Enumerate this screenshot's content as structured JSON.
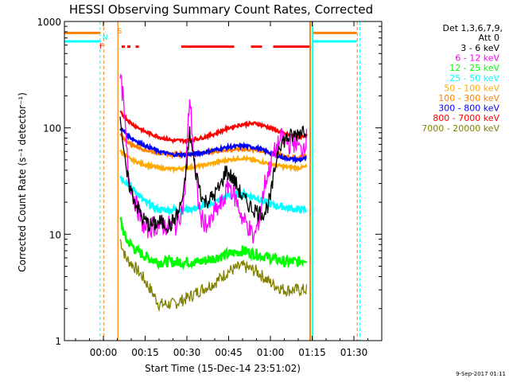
{
  "chart_data": {
    "type": "line",
    "title": "HESSI Observing Summary Count Rates, Corrected",
    "xlabel": "Start Time (15-Dec-14 23:51:02)",
    "ylabel": "Corrected Count Rate (s⁻¹ detector⁻¹)",
    "yscale": "log",
    "ylim": [
      1,
      1000
    ],
    "xlim_minutes": [
      -14,
      100
    ],
    "x_unit": "minutes after 00:00",
    "x_ticks": [
      "00:00",
      "00:15",
      "00:30",
      "00:45",
      "01:00",
      "01:15",
      "01:30"
    ],
    "y_ticks": [
      "1",
      "10",
      "100",
      "1000"
    ],
    "legend_header": [
      "Det 1,3,6,7,9,",
      "Att 0"
    ],
    "legend_position": "right",
    "grid": false,
    "series": [
      {
        "name": "3 - 6 keV",
        "color": "#000000",
        "x": [
          6,
          8,
          10,
          14,
          17,
          20,
          24,
          27,
          29,
          31,
          33,
          36,
          39,
          42,
          44,
          47,
          50,
          53,
          56,
          58,
          60,
          63,
          66,
          69,
          71,
          73
        ],
        "values": [
          140,
          40,
          25,
          14,
          12,
          13,
          12,
          16,
          25,
          90,
          40,
          20,
          22,
          28,
          40,
          32,
          22,
          18,
          16,
          16,
          22,
          70,
          80,
          85,
          95,
          100
        ]
      },
      {
        "name": "6 - 12 keV",
        "color": "#ff00ff",
        "x": [
          6,
          7,
          9,
          12,
          15,
          18,
          22,
          26,
          29,
          31,
          33,
          35,
          38,
          40,
          43,
          45,
          48,
          50,
          52,
          54,
          56,
          58,
          61,
          64,
          67,
          69,
          71,
          73
        ],
        "values": [
          300,
          200,
          35,
          18,
          11,
          12,
          12,
          12,
          20,
          200,
          35,
          14,
          12,
          16,
          20,
          30,
          20,
          14,
          12,
          9,
          14,
          30,
          55,
          80,
          70,
          75,
          60,
          80
        ]
      },
      {
        "name": "12 - 25 keV",
        "color": "#00ff00",
        "x": [
          6,
          8,
          12,
          16,
          20,
          25,
          30,
          35,
          40,
          45,
          50,
          55,
          60,
          65,
          70,
          73
        ],
        "values": [
          14,
          9,
          7,
          6,
          5.5,
          5.5,
          5.5,
          5.5,
          6,
          6.5,
          7,
          6.5,
          6,
          5.5,
          5.5,
          6
        ]
      },
      {
        "name": "25 - 50 keV",
        "color": "#00ffff",
        "x": [
          6,
          10,
          15,
          20,
          25,
          30,
          35,
          40,
          45,
          50,
          55,
          60,
          65,
          70,
          73
        ],
        "values": [
          35,
          28,
          20,
          17,
          17,
          17,
          18,
          20,
          23,
          24,
          22,
          19,
          18,
          17,
          17
        ]
      },
      {
        "name": "50 - 100 keV",
        "color": "#ffaa00",
        "x": [
          6,
          10,
          15,
          20,
          25,
          30,
          35,
          40,
          45,
          50,
          55,
          60,
          65,
          70,
          73
        ],
        "values": [
          60,
          50,
          45,
          42,
          41,
          42,
          44,
          47,
          50,
          52,
          49,
          46,
          43,
          42,
          43
        ]
      },
      {
        "name": "100 - 300 keV",
        "color": "#ff7f00",
        "x": [
          6,
          10,
          15,
          20,
          25,
          30,
          35,
          40,
          45,
          50,
          55,
          60,
          65,
          70,
          73
        ],
        "values": [
          85,
          70,
          62,
          58,
          56,
          56,
          58,
          60,
          62,
          63,
          62,
          58,
          54,
          52,
          55
        ]
      },
      {
        "name": "300 - 800 keV",
        "color": "#0000ff",
        "x": [
          6,
          10,
          15,
          20,
          25,
          30,
          35,
          40,
          45,
          50,
          55,
          60,
          65,
          70,
          73
        ],
        "values": [
          100,
          80,
          68,
          60,
          56,
          56,
          58,
          62,
          66,
          68,
          65,
          58,
          52,
          50,
          52
        ]
      },
      {
        "name": "800 - 7000 keV",
        "color": "#ff0000",
        "x": [
          6,
          10,
          15,
          20,
          25,
          30,
          35,
          40,
          45,
          50,
          55,
          60,
          65,
          70,
          73
        ],
        "values": [
          140,
          110,
          92,
          82,
          76,
          76,
          80,
          88,
          100,
          108,
          110,
          100,
          88,
          82,
          85
        ]
      },
      {
        "name": "7000 - 20000 keV",
        "color": "#808000",
        "x": [
          6,
          8,
          11,
          14,
          17,
          20,
          25,
          30,
          35,
          40,
          45,
          50,
          55,
          60,
          65,
          70,
          73
        ],
        "values": [
          9,
          6,
          5,
          4,
          3,
          2.2,
          2.2,
          2.5,
          3,
          3.5,
          4.5,
          5,
          4.5,
          3.5,
          3,
          3,
          3
        ]
      }
    ],
    "annotations": {
      "flags_text": [
        "F",
        "N",
        "S"
      ],
      "flag_colors": {
        "F": "#ff0000",
        "N": "#00ffff",
        "S": "#ff7f00"
      },
      "saa_bar_color": "#ff0000",
      "saa_intervals_minutes": [
        [
          28,
          47
        ],
        [
          53,
          57
        ],
        [
          61,
          74
        ]
      ],
      "saa_dots_minutes": [
        7,
        9,
        12
      ],
      "att_line_color": "#ff7f00",
      "night_line_color": "#00ffff",
      "level_markers": [
        {
          "color": "#00ffff",
          "value": 650
        },
        {
          "color": "#ff7f00",
          "value": 780
        }
      ]
    }
  },
  "footer": {
    "date_stamp": "9-Sep-2017 01:11"
  }
}
